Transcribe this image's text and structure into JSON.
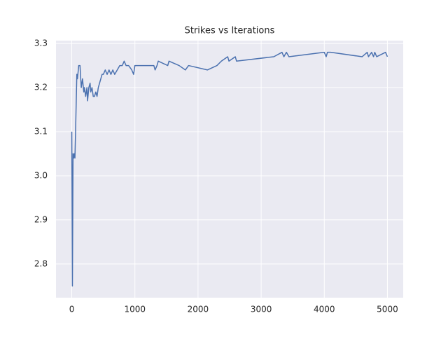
{
  "chart_data": {
    "type": "line",
    "title": "Strikes vs Iterations",
    "x": [
      0,
      10,
      20,
      30,
      40,
      50,
      60,
      80,
      90,
      110,
      130,
      150,
      170,
      190,
      200,
      220,
      240,
      250,
      270,
      290,
      300,
      320,
      340,
      360,
      380,
      400,
      420,
      440,
      460,
      480,
      500,
      530,
      560,
      590,
      620,
      650,
      680,
      720,
      760,
      800,
      830,
      860,
      900,
      950,
      980,
      1000,
      1040,
      1300,
      1320,
      1350,
      1370,
      1520,
      1540,
      1700,
      1800,
      1850,
      2150,
      2300,
      2370,
      2470,
      2490,
      2590,
      2610,
      3200,
      3330,
      3360,
      3400,
      3440,
      4000,
      4030,
      4050,
      4100,
      4600,
      4680,
      4700,
      4750,
      4780,
      4800,
      4830,
      4970,
      5000
    ],
    "values": [
      3.1,
      2.75,
      3.05,
      3.04,
      3.05,
      3.04,
      3.1,
      3.23,
      3.22,
      3.25,
      3.25,
      3.2,
      3.22,
      3.19,
      3.2,
      3.18,
      3.2,
      3.17,
      3.2,
      3.21,
      3.19,
      3.2,
      3.18,
      3.18,
      3.19,
      3.18,
      3.2,
      3.21,
      3.22,
      3.23,
      3.23,
      3.24,
      3.23,
      3.24,
      3.23,
      3.24,
      3.23,
      3.24,
      3.25,
      3.25,
      3.26,
      3.25,
      3.25,
      3.24,
      3.23,
      3.25,
      3.25,
      3.25,
      3.24,
      3.25,
      3.26,
      3.25,
      3.26,
      3.25,
      3.24,
      3.25,
      3.24,
      3.25,
      3.26,
      3.27,
      3.26,
      3.27,
      3.26,
      3.27,
      3.28,
      3.27,
      3.28,
      3.27,
      3.28,
      3.27,
      3.28,
      3.28,
      3.27,
      3.28,
      3.27,
      3.28,
      3.27,
      3.28,
      3.27,
      3.28,
      3.27
    ],
    "color": "#4c72b0",
    "xlim": [
      -250,
      5250
    ],
    "xticks": [
      0,
      1000,
      2000,
      3000,
      4000,
      5000
    ],
    "ylim": [
      2.7235,
      3.3065
    ],
    "yticks": [
      2.8,
      2.9,
      {
        "value": 3,
        "label": "3.0"
      },
      3.1,
      3.2,
      3.3
    ],
    "grid": true
  }
}
